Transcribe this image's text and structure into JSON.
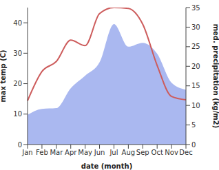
{
  "chart_data": {
    "type": "line",
    "xlabel": "date (month)",
    "ylabel": "max temp (C)",
    "y2label": "med. precipitation (kg/m2)",
    "categories": [
      "Jan",
      "Feb",
      "Mar",
      "Apr",
      "May",
      "Jun",
      "Jul",
      "Aug",
      "Sep",
      "Oct",
      "Nov",
      "Dec"
    ],
    "series": [
      {
        "name": "med. precipitation",
        "type": "area",
        "axis": "y2",
        "color": "#aab8f0",
        "values": [
          7.6,
          9.1,
          9.3,
          14.4,
          17.6,
          21,
          30.8,
          25,
          26,
          23.2,
          15.8,
          14
        ]
      },
      {
        "name": "max temp",
        "type": "line",
        "color": "#cd5c5c",
        "values": [
          14.4,
          24,
          27.3,
          34.3,
          32.5,
          43,
          45,
          44.7,
          39.5,
          26,
          15.8,
          14.7
        ]
      }
    ],
    "ylim": [
      0,
      45
    ],
    "yticks": [
      0,
      10,
      20,
      30,
      40
    ],
    "y2lim": [
      0,
      35
    ],
    "y2ticks": [
      0,
      5,
      10,
      15,
      20,
      25,
      30,
      35
    ],
    "grid": false
  }
}
